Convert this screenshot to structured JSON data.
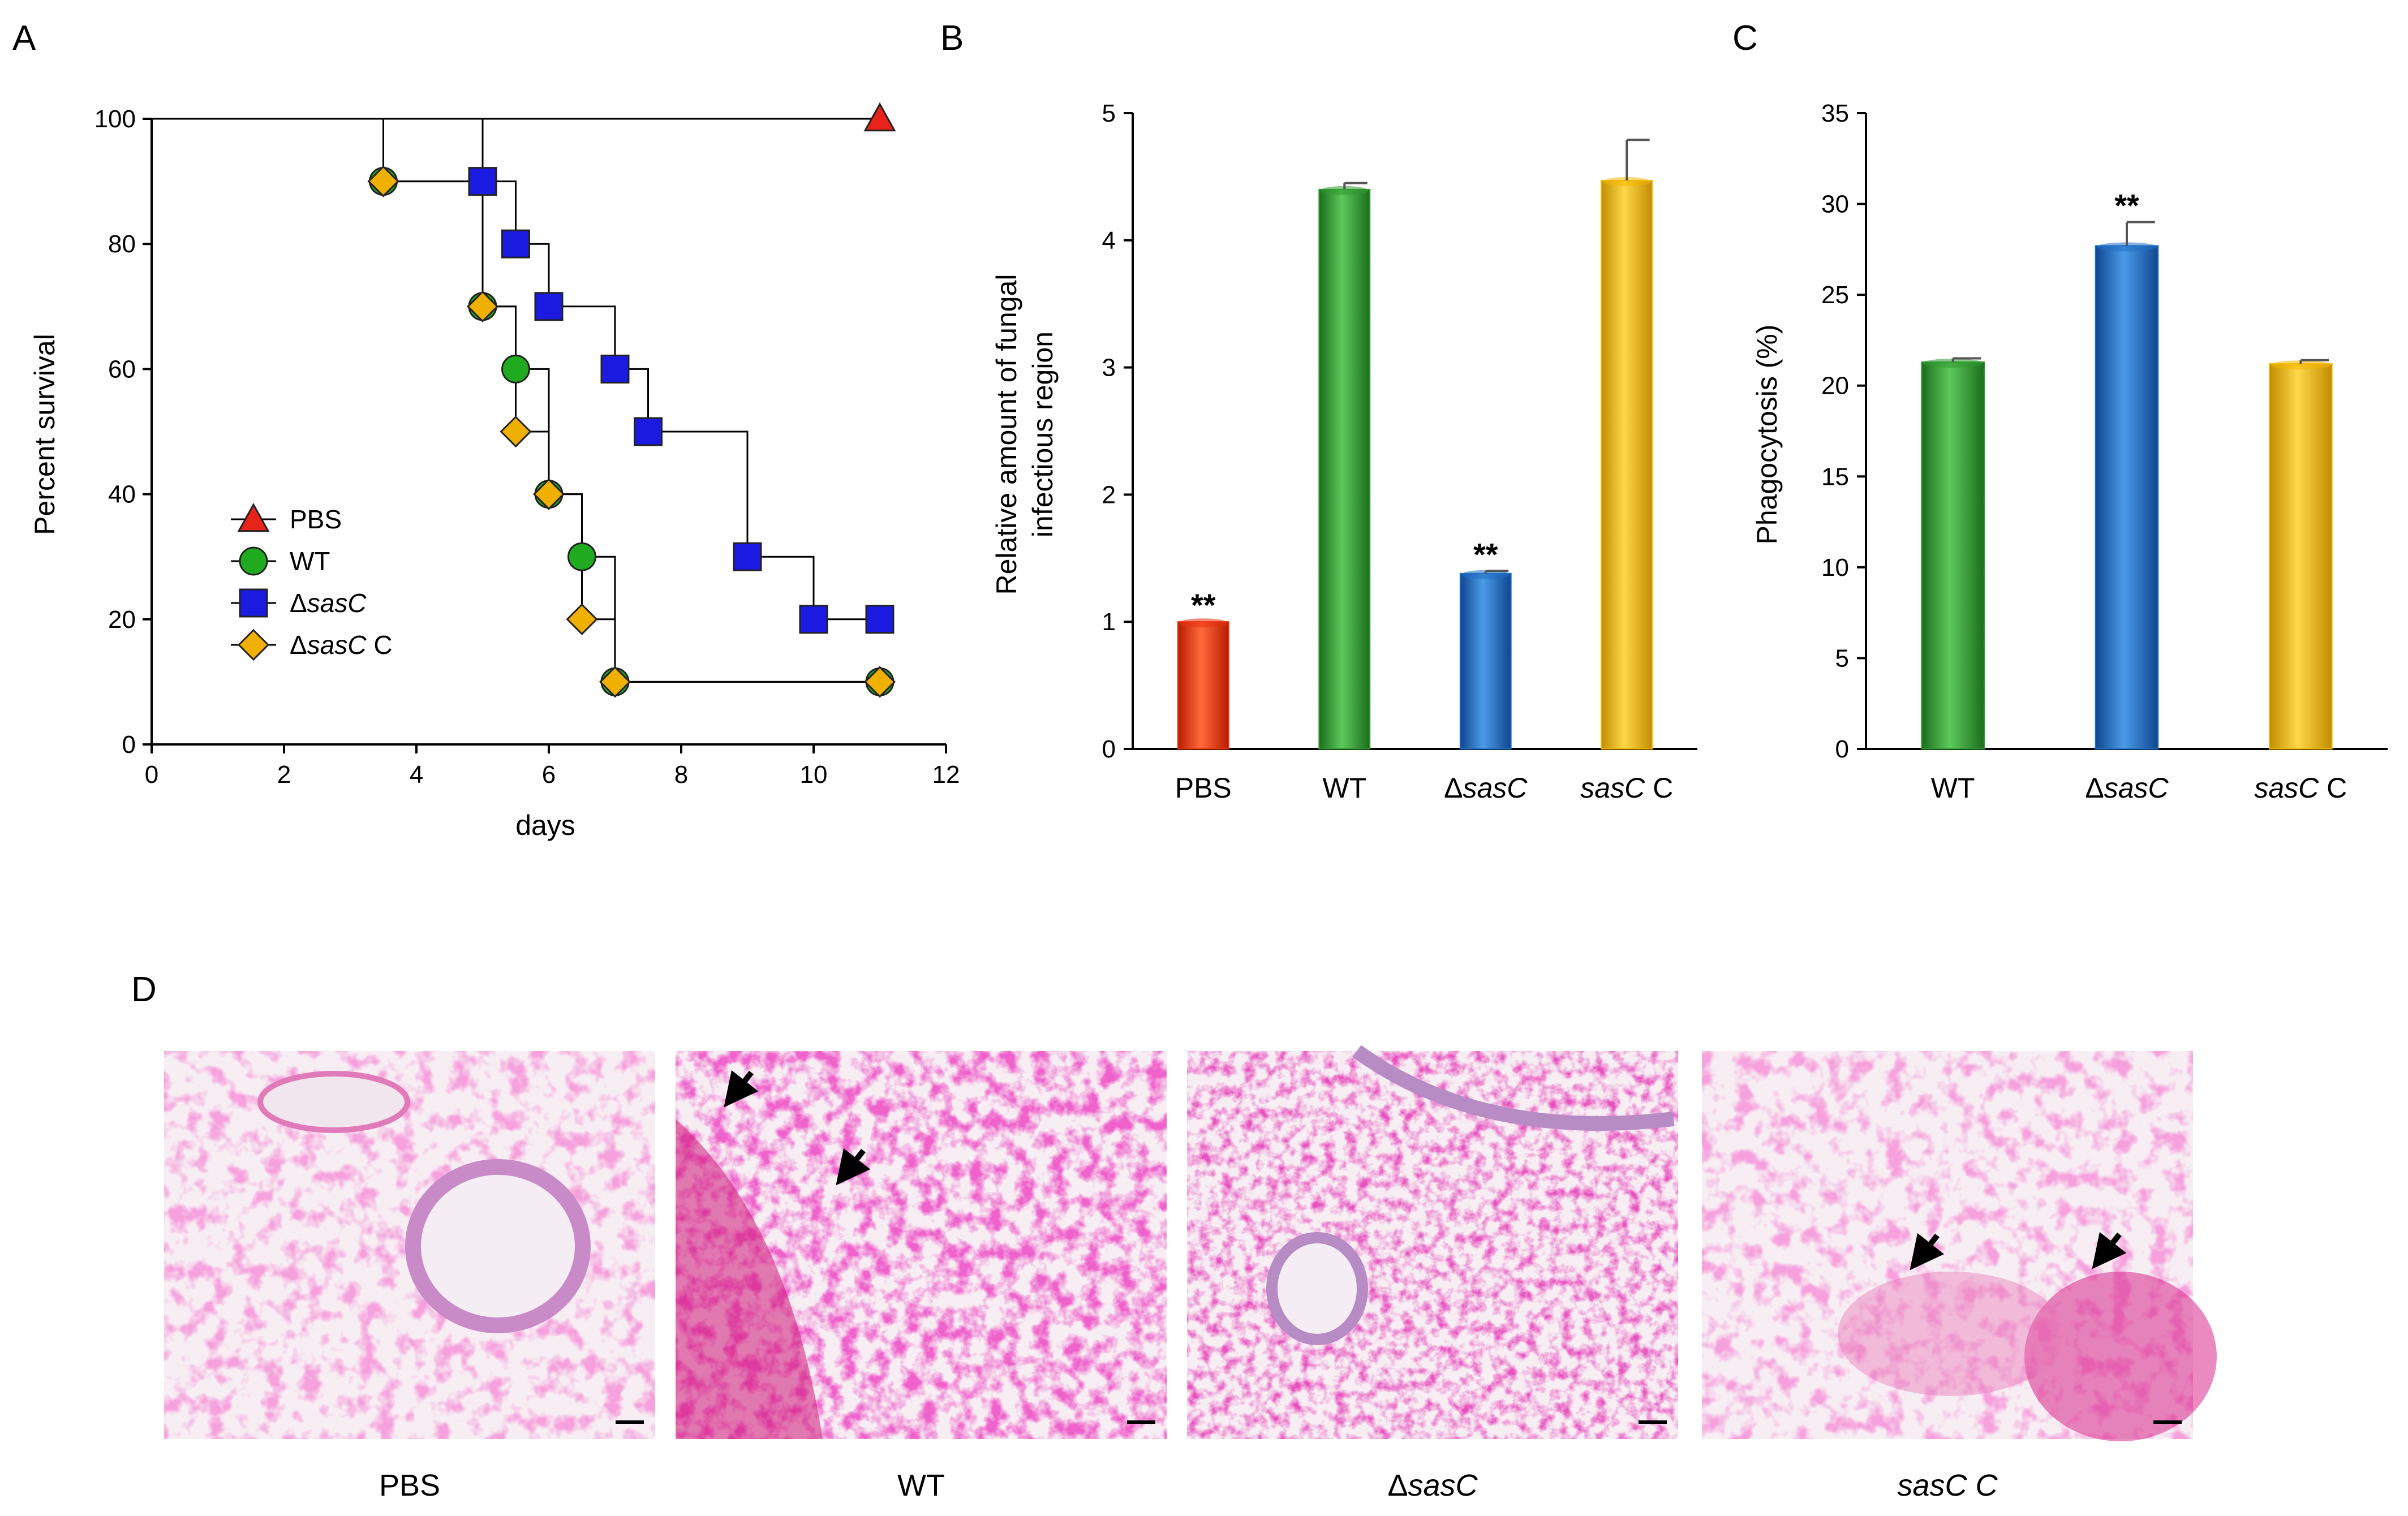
{
  "figure": {
    "panel_labels": [
      "A",
      "B",
      "C",
      "D"
    ]
  },
  "chart_data": [
    {
      "type": "line",
      "subtype": "kaplan-meier survival",
      "panel": "A",
      "xlabel": "days",
      "ylabel": "Percent survival",
      "xlim": [
        0,
        12
      ],
      "ylim": [
        0,
        100
      ],
      "xticks": [
        "0",
        "2",
        "4",
        "6",
        "8",
        "10",
        "12"
      ],
      "yticks": [
        "0",
        "20",
        "40",
        "60",
        "80",
        "100"
      ],
      "legend_position": "left-middle",
      "series": [
        {
          "name": "PBS",
          "name_italic_part": "",
          "marker": "triangle",
          "color": "#e8231a",
          "steps": [
            [
              0,
              100
            ],
            [
              11,
              100
            ]
          ],
          "markers": [
            [
              11,
              100
            ]
          ]
        },
        {
          "name": "WT",
          "name_italic_part": "",
          "marker": "circle",
          "color": "#1faa1f",
          "steps": [
            [
              0,
              100
            ],
            [
              3.5,
              100
            ],
            [
              3.5,
              90
            ],
            [
              5,
              90
            ],
            [
              5,
              70
            ],
            [
              5.5,
              70
            ],
            [
              5.5,
              60
            ],
            [
              6,
              60
            ],
            [
              6,
              40
            ],
            [
              6.5,
              40
            ],
            [
              6.5,
              30
            ],
            [
              7,
              30
            ],
            [
              7,
              10
            ],
            [
              11,
              10
            ]
          ],
          "markers": [
            [
              3.5,
              90
            ],
            [
              5,
              70
            ],
            [
              5.5,
              60
            ],
            [
              6,
              40
            ],
            [
              6.5,
              30
            ],
            [
              7,
              10
            ],
            [
              11,
              10
            ]
          ]
        },
        {
          "name": "ΔsasC",
          "name_prefix": "Δ",
          "name_italic_part": "sasC",
          "name_suffix": "",
          "marker": "square",
          "color": "#1a1ae0",
          "steps": [
            [
              0,
              100
            ],
            [
              5,
              100
            ],
            [
              5,
              90
            ],
            [
              5.5,
              90
            ],
            [
              5.5,
              80
            ],
            [
              6,
              80
            ],
            [
              6,
              70
            ],
            [
              7,
              70
            ],
            [
              7,
              60
            ],
            [
              7.5,
              60
            ],
            [
              7.5,
              50
            ],
            [
              9,
              50
            ],
            [
              9,
              30
            ],
            [
              10,
              30
            ],
            [
              10,
              20
            ],
            [
              11,
              20
            ]
          ],
          "markers": [
            [
              5,
              90
            ],
            [
              5.5,
              80
            ],
            [
              6,
              70
            ],
            [
              7,
              60
            ],
            [
              7.5,
              50
            ],
            [
              9,
              30
            ],
            [
              10,
              20
            ],
            [
              11,
              20
            ]
          ]
        },
        {
          "name": "ΔsasC C",
          "name_prefix": "Δ",
          "name_italic_part": "sasC",
          "name_suffix": " C",
          "marker": "diamond",
          "color": "#f0b000",
          "steps": [
            [
              0,
              100
            ],
            [
              3.5,
              100
            ],
            [
              3.5,
              90
            ],
            [
              5,
              90
            ],
            [
              5,
              70
            ],
            [
              5.5,
              70
            ],
            [
              5.5,
              50
            ],
            [
              6,
              50
            ],
            [
              6,
              40
            ],
            [
              6.5,
              40
            ],
            [
              6.5,
              20
            ],
            [
              7,
              20
            ],
            [
              7,
              10
            ],
            [
              11,
              10
            ]
          ],
          "markers": [
            [
              3.5,
              90
            ],
            [
              5,
              70
            ],
            [
              5.5,
              50
            ],
            [
              6,
              40
            ],
            [
              6.5,
              20
            ],
            [
              7,
              10
            ],
            [
              11,
              10
            ]
          ]
        }
      ]
    },
    {
      "type": "bar",
      "panel": "B",
      "ylabel": "Relative amount of fungal infectious region",
      "ylabel_lines": [
        "Relative amount of fungal",
        "infectious region"
      ],
      "ylim": [
        0,
        5
      ],
      "yticks": [
        "0",
        "1",
        "2",
        "3",
        "4",
        "5"
      ],
      "categories": [
        {
          "prefix": "",
          "italic": "",
          "suffix": "PBS"
        },
        {
          "prefix": "",
          "italic": "",
          "suffix": "WT"
        },
        {
          "prefix": "Δ",
          "italic": "sasC",
          "suffix": ""
        },
        {
          "prefix": "",
          "italic": "sasC",
          "suffix": " C"
        }
      ],
      "values": [
        1.0,
        4.4,
        1.38,
        4.47
      ],
      "errors": [
        0.0,
        0.05,
        0.02,
        0.32
      ],
      "colors": [
        "#e8320f",
        "#2f9a2f",
        "#1f6fc4",
        "#f2b600"
      ],
      "significance": [
        "**",
        "",
        "**",
        ""
      ]
    },
    {
      "type": "bar",
      "panel": "C",
      "ylabel": "Phagocytosis (%)",
      "ylim": [
        0,
        35
      ],
      "yticks": [
        "0",
        "5",
        "10",
        "15",
        "20",
        "25",
        "30",
        "35"
      ],
      "categories": [
        {
          "prefix": "",
          "italic": "",
          "suffix": "WT"
        },
        {
          "prefix": "Δ",
          "italic": "sasC",
          "suffix": ""
        },
        {
          "prefix": "",
          "italic": "sasC",
          "suffix": " C"
        }
      ],
      "values": [
        21.3,
        27.7,
        21.2
      ],
      "errors": [
        0.2,
        1.3,
        0.2
      ],
      "colors": [
        "#2f9a2f",
        "#1f6fc4",
        "#f2b600"
      ],
      "significance": [
        "",
        "**",
        ""
      ]
    }
  ],
  "micrographs": {
    "panel": "D",
    "stain": "pink histology",
    "arrow_icon": "black-arrow-icon",
    "items": [
      {
        "label": {
          "prefix": "",
          "italic": "",
          "suffix": "PBS"
        },
        "arrows": 0
      },
      {
        "label": {
          "prefix": "",
          "italic": "",
          "suffix": "WT"
        },
        "arrows": 2
      },
      {
        "label": {
          "prefix": "Δ",
          "italic": "sasC",
          "suffix": ""
        },
        "arrows": 0
      },
      {
        "label": {
          "prefix": "",
          "italic": "sasC C",
          "suffix": ""
        },
        "arrows": 2
      }
    ]
  }
}
